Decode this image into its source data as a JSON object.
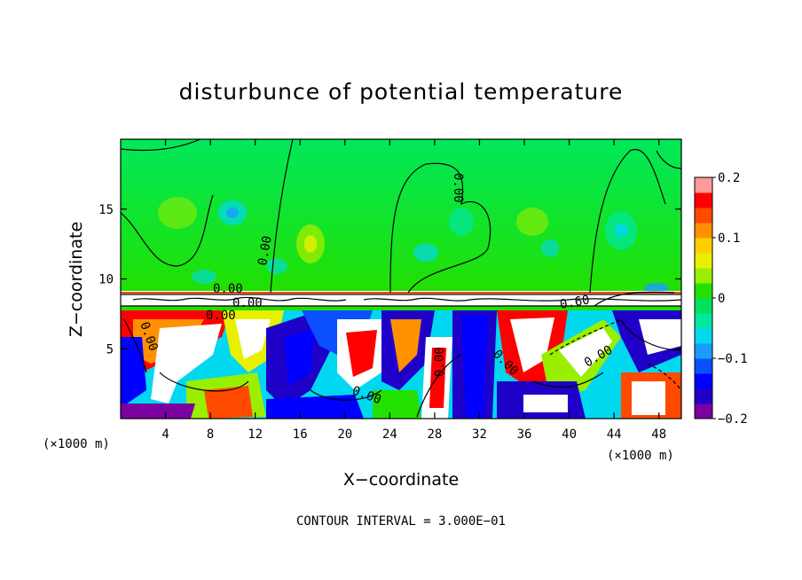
{
  "chart_data": {
    "type": "heatmap",
    "title": "disturbunce of potential temperature",
    "xlabel": "X−coordinate",
    "ylabel": "Z−coordinate",
    "x_unit_left": "(×1000 m)",
    "x_unit_right": "(×1000 m)",
    "footer": "CONTOUR INTERVAL = 3.000E−01",
    "xlim": [
      0,
      50
    ],
    "ylim": [
      0,
      20
    ],
    "xticks": [
      4,
      8,
      12,
      16,
      20,
      24,
      28,
      32,
      36,
      40,
      44,
      48
    ],
    "xtick_labels": [
      "4",
      "8",
      "12",
      "16",
      "20",
      "24",
      "28",
      "32",
      "36",
      "40",
      "44",
      "48"
    ],
    "yticks": [
      5,
      10,
      15
    ],
    "ytick_labels": [
      "5",
      "10",
      "15"
    ],
    "colorbar": {
      "min": -0.2,
      "max": 0.2,
      "ticks": [
        0.2,
        0.1,
        0,
        -0.1,
        -0.2
      ],
      "tick_labels": [
        "0.2",
        "0.1",
        "0",
        "−0.1",
        "−0.2"
      ],
      "colors": [
        "#7a00a0",
        "#1e00c8",
        "#0000ff",
        "#0a50ff",
        "#1a9cff",
        "#00d8f0",
        "#00e8a0",
        "#00e060",
        "#22e000",
        "#9aee00",
        "#e8f000",
        "#ffd000",
        "#ff9000",
        "#ff4a00",
        "#ff0000",
        "#ff9a9a"
      ]
    },
    "contour_labels": [
      "0.00",
      "0.00",
      "0.00",
      "0.00",
      "0.00",
      "0.00",
      "0.00",
      "0.00",
      "0.00",
      "0.00",
      "0.60"
    ],
    "background_layer_value": 0.02,
    "layer_boundary_z": 9
  }
}
